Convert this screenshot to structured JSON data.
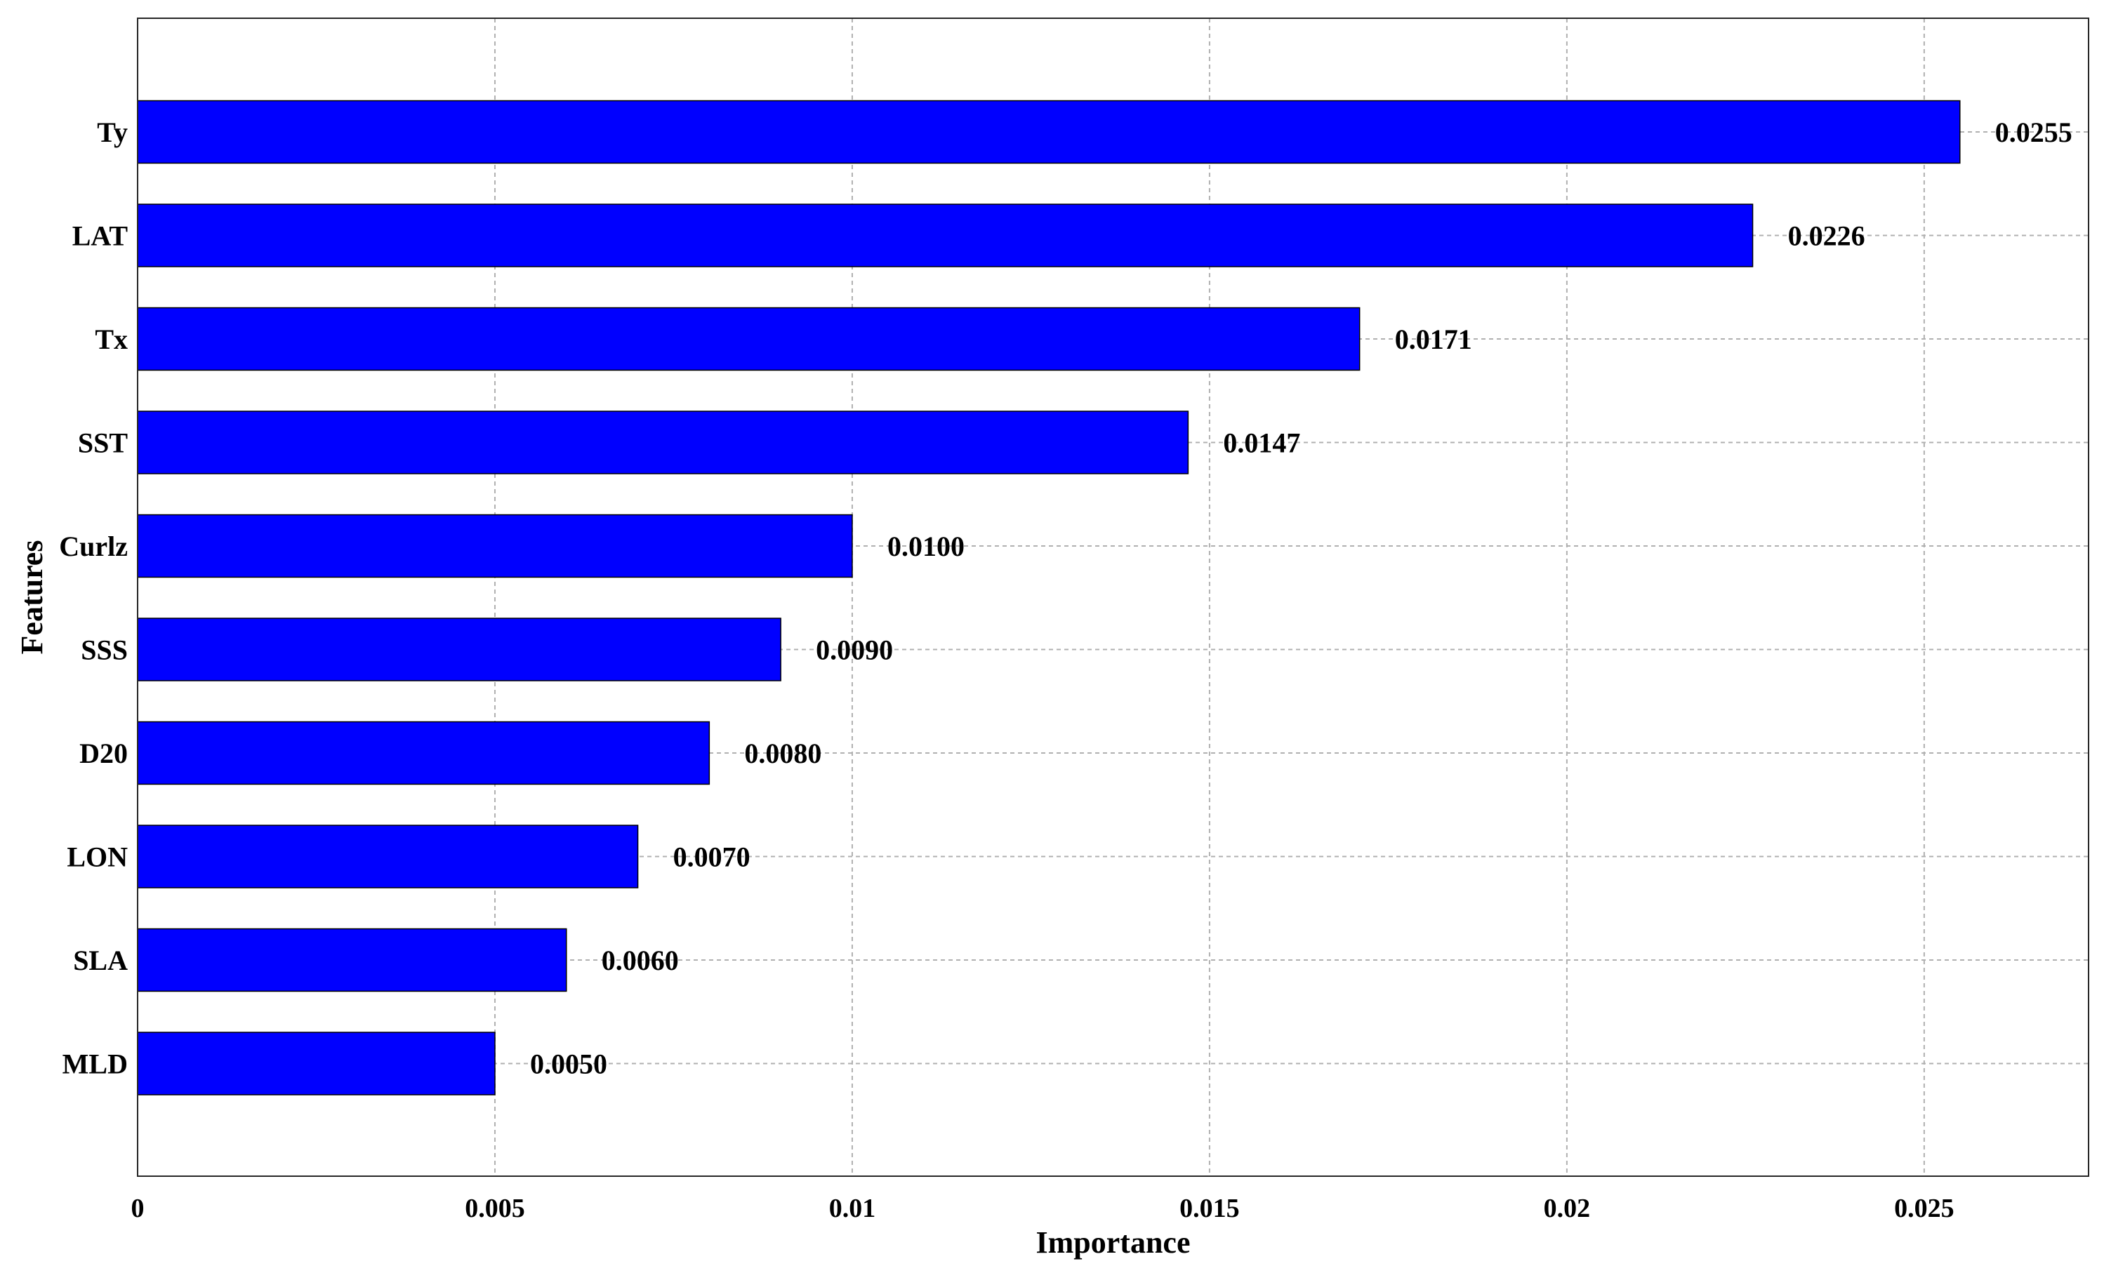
{
  "chart_data": {
    "type": "bar",
    "orientation": "horizontal",
    "categories": [
      "Ty",
      "LAT",
      "Tx",
      "SST",
      "Curlz",
      "SSS",
      "D20",
      "LON",
      "SLA",
      "MLD"
    ],
    "values": [
      0.0255,
      0.0226,
      0.0171,
      0.0147,
      0.01,
      0.009,
      0.008,
      0.007,
      0.006,
      0.005
    ],
    "value_labels": [
      "0.0255",
      "0.0226",
      "0.0171",
      "0.0147",
      "0.0100",
      "0.0090",
      "0.0080",
      "0.0070",
      "0.0060",
      "0.0050"
    ],
    "xlabel": "Importance",
    "ylabel": "Features",
    "xlim": [
      0,
      0.0273
    ],
    "x_ticks": [
      0,
      0.005,
      0.01,
      0.015,
      0.02,
      0.025
    ],
    "x_tick_labels": [
      "0",
      "0.005",
      "0.01",
      "0.015",
      "0.02",
      "0.025"
    ],
    "grid": true,
    "bar_color": "#0000ff"
  }
}
